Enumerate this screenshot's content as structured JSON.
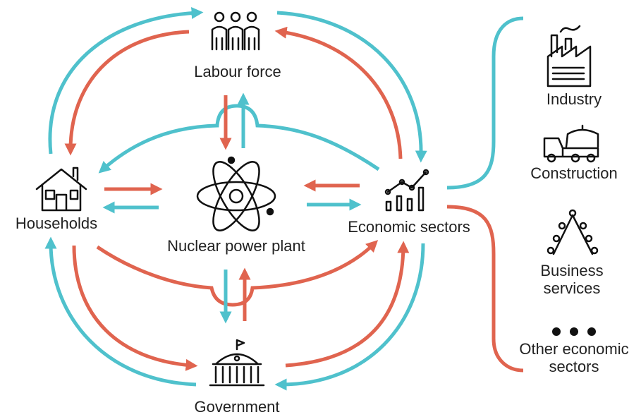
{
  "nodes": [
    {
      "label": "Labour force"
    },
    {
      "label": "Households"
    },
    {
      "label": "Nuclear power plant"
    },
    {
      "label": "Economic sectors"
    },
    {
      "label": "Government"
    }
  ],
  "sectors": [
    {
      "lines": [
        "Industry"
      ]
    },
    {
      "lines": [
        "Construction"
      ]
    },
    {
      "lines": [
        "Business",
        "services"
      ]
    },
    {
      "lines": [
        "Other economic",
        "sectors"
      ]
    }
  ]
}
